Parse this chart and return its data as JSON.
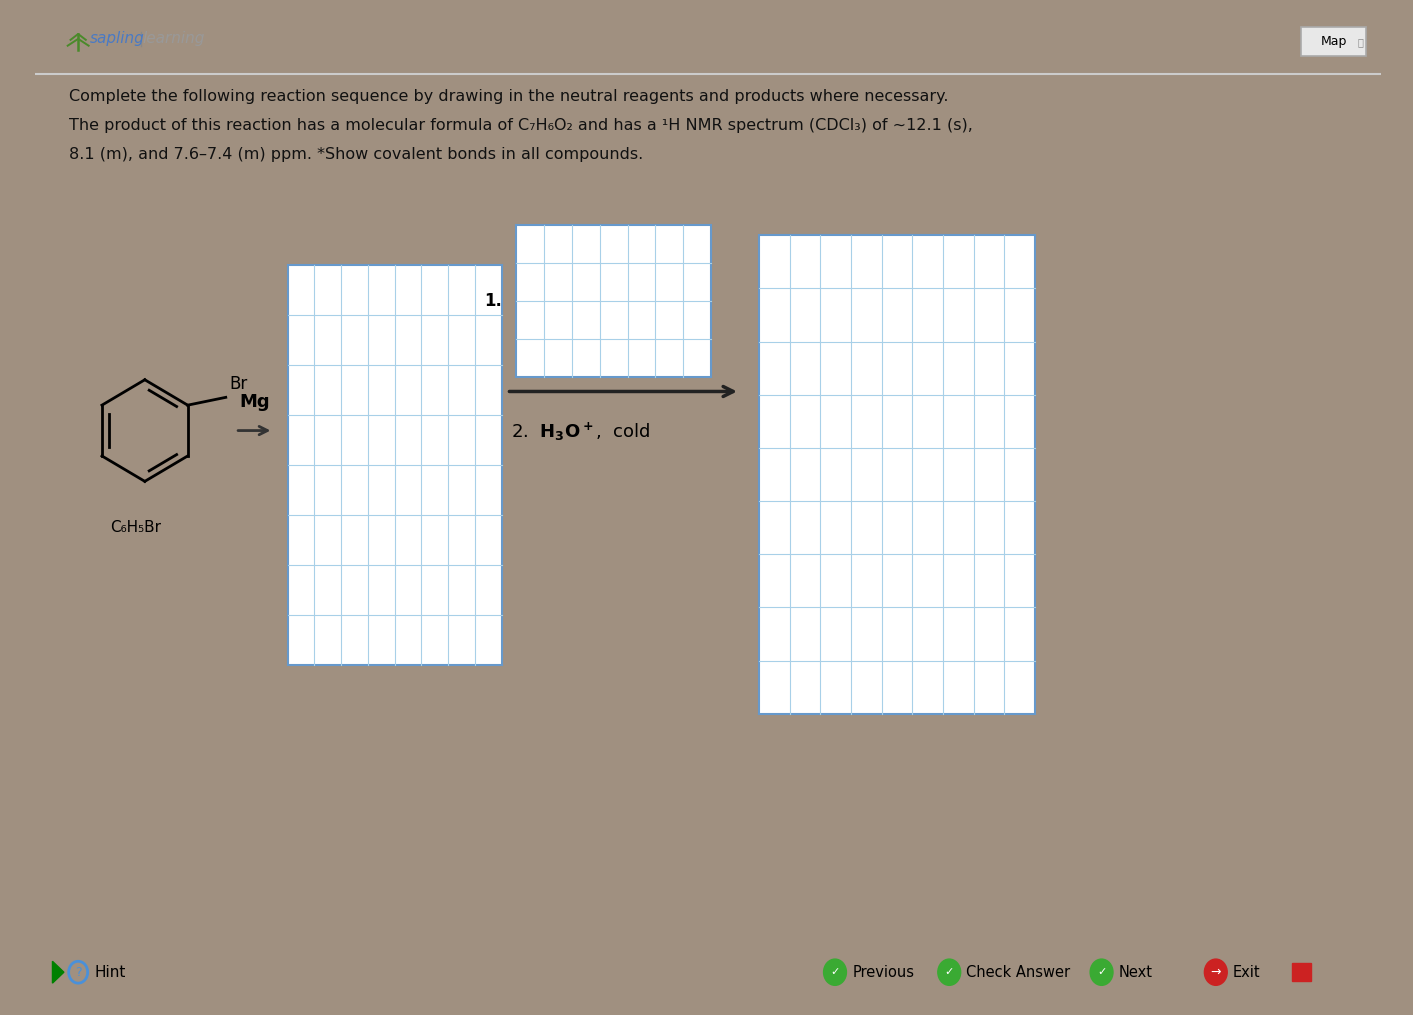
{
  "bg_outer": "#a09080",
  "bg_inner": "#d8d3c8",
  "main_bg": "#ffffff",
  "toolbar_bg": "#ccc8b8",
  "sapling_green": "#4a8a2a",
  "sapling_blue": "#4a7ac4",
  "grid_color": "#a8d0e8",
  "border_color": "#6699cc",
  "text_color": "#111111",
  "line1": "Complete the following reaction sequence by drawing in the neutral reagents and products where necessary.",
  "line2": "The product of this reaction has a molecular formula of C₇H₆O₂ and has a ¹H NMR spectrum (CDCl₃) of ~12.1 (s),",
  "line3": "8.1 (m), and 7.6–7.4 (m) ppm. *Show covalent bonds in all compounds.",
  "compound_label": "C₆H₅Br",
  "reagent_mg": "Mg",
  "step1": "1.",
  "hint": "Hint",
  "map_text": "Map",
  "btn_prev": "Previous",
  "btn_check": "Check Answer",
  "btn_next": "Next",
  "btn_exit": "Exit",
  "grid1_cols": 8,
  "grid1_rows": 8,
  "grid2_cols": 7,
  "grid2_rows": 4,
  "grid3_cols": 9,
  "grid3_rows": 9
}
